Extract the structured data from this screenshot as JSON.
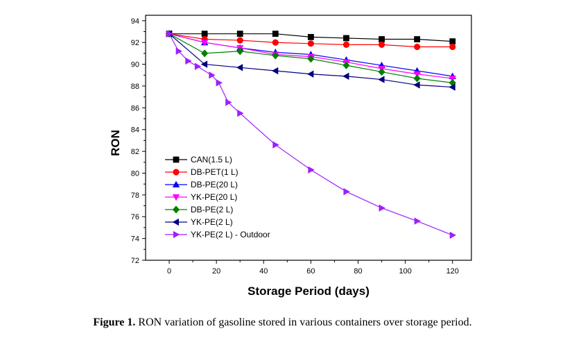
{
  "chart_data": {
    "type": "line",
    "title": "",
    "xlabel": "Storage Period (days)",
    "ylabel": "RON",
    "xlim": [
      -10,
      128
    ],
    "ylim": [
      72,
      94.5
    ],
    "xticks": [
      0,
      20,
      40,
      60,
      80,
      100,
      120
    ],
    "yticks": [
      72,
      74,
      76,
      78,
      80,
      82,
      84,
      86,
      88,
      90,
      92,
      94
    ],
    "grid": false,
    "legend_position": "bottom-left",
    "series": [
      {
        "name": "CAN(1.5 L)",
        "color": "#000000",
        "marker": "square",
        "x": [
          0,
          15,
          30,
          45,
          60,
          75,
          90,
          105,
          120
        ],
        "y": [
          92.8,
          92.8,
          92.8,
          92.8,
          92.5,
          92.4,
          92.3,
          92.3,
          92.1
        ]
      },
      {
        "name": "DB-PET(1 L)",
        "color": "#ff0000",
        "marker": "circle",
        "x": [
          0,
          15,
          30,
          45,
          60,
          75,
          90,
          105,
          120
        ],
        "y": [
          92.8,
          92.3,
          92.2,
          92.0,
          91.9,
          91.8,
          91.8,
          91.6,
          91.6
        ]
      },
      {
        "name": "DB-PE(20 L)",
        "color": "#0000ff",
        "marker": "triangle-up",
        "x": [
          0,
          15,
          30,
          45,
          60,
          75,
          90,
          105,
          120
        ],
        "y": [
          92.8,
          92.0,
          91.5,
          91.1,
          90.9,
          90.4,
          89.9,
          89.4,
          88.9
        ]
      },
      {
        "name": "YK-PE(20 L)",
        "color": "#ff00ff",
        "marker": "triangle-down",
        "x": [
          0,
          15,
          30,
          45,
          60,
          75,
          90,
          105,
          120
        ],
        "y": [
          92.8,
          92.0,
          91.5,
          90.9,
          90.7,
          90.2,
          89.6,
          89.1,
          88.7
        ]
      },
      {
        "name": "DB-PE(2 L)",
        "color": "#008000",
        "marker": "diamond",
        "x": [
          0,
          15,
          30,
          45,
          60,
          75,
          90,
          105,
          120
        ],
        "y": [
          92.8,
          91.0,
          91.2,
          90.8,
          90.5,
          89.9,
          89.3,
          88.7,
          88.3
        ]
      },
      {
        "name": "YK-PE(2 L)",
        "color": "#000080",
        "marker": "triangle-left",
        "x": [
          0,
          15,
          30,
          45,
          60,
          75,
          90,
          105,
          120
        ],
        "y": [
          92.8,
          90.0,
          89.7,
          89.4,
          89.1,
          88.9,
          88.6,
          88.1,
          87.9
        ]
      },
      {
        "name": "YK-PE(2 L) - Outdoor",
        "color": "#9f1fff",
        "marker": "triangle-right",
        "x": [
          0,
          4,
          8,
          12,
          18,
          21,
          25,
          30,
          45,
          60,
          75,
          90,
          105,
          120
        ],
        "y": [
          92.8,
          91.2,
          90.3,
          89.8,
          89.0,
          88.3,
          86.5,
          85.5,
          82.6,
          80.3,
          78.3,
          76.8,
          75.6,
          74.3
        ]
      }
    ]
  },
  "caption": {
    "label": "Figure 1.",
    "text": " RON variation of gasoline stored in various containers over storage period."
  }
}
